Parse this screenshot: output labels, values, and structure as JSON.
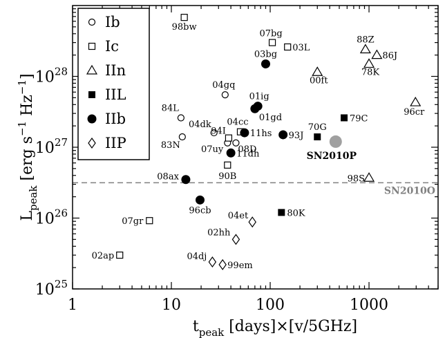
{
  "chart_data": {
    "type": "scatter",
    "title": "",
    "xlabel": {
      "main": "t",
      "sub": "peak",
      "rest": " [days]×[v/5GHz]"
    },
    "ylabel": {
      "main": "L",
      "sub": "peak",
      "rest": " [erg s",
      "exp1": "−1",
      "mid": " Hz",
      "exp2": "−1",
      "close": "]"
    },
    "x_scale": "log",
    "y_scale": "log",
    "xlim": [
      1,
      5000
    ],
    "ylim": [
      1e+25,
      1e+29
    ],
    "grid": false,
    "legend_position": "top-left",
    "x_ticks": [
      {
        "value": 1,
        "label": "1"
      },
      {
        "value": 10,
        "label": "10"
      },
      {
        "value": 100,
        "label": "100"
      },
      {
        "value": 1000,
        "label": "1000"
      }
    ],
    "y_ticks": [
      {
        "value": 1e+25,
        "mant": "10",
        "exp": "25"
      },
      {
        "value": 1e+26,
        "mant": "10",
        "exp": "26"
      },
      {
        "value": 1e+27,
        "mant": "10",
        "exp": "27"
      },
      {
        "value": 1e+28,
        "mant": "10",
        "exp": "28"
      }
    ],
    "legend": [
      {
        "key": "Ib",
        "label": "Ib",
        "marker": "circle-open"
      },
      {
        "key": "Ic",
        "label": "Ic",
        "marker": "square-open"
      },
      {
        "key": "IIn",
        "label": "IIn",
        "marker": "triangle-open"
      },
      {
        "key": "IIL",
        "label": "IIL",
        "marker": "square-filled"
      },
      {
        "key": "IIb",
        "label": "IIb",
        "marker": "circle-filled"
      },
      {
        "key": "IIP",
        "label": "IIP",
        "marker": "diamond-open"
      }
    ],
    "series": [
      {
        "name": "Ib",
        "marker": "circle-open",
        "points": [
          {
            "label": "84L",
            "x": 12.5,
            "y": 2.6e+27
          },
          {
            "label": "83N",
            "x": 12.9,
            "y": 1.4e+27
          },
          {
            "label": "04dk",
            "x": 27,
            "y": 1.6e+27
          },
          {
            "label": "04gq",
            "x": 35,
            "y": 5.5e+27
          },
          {
            "label": "07uy",
            "x": 37,
            "y": 1.15e+27
          },
          {
            "label": "08D",
            "x": 45,
            "y": 1.15e+27
          }
        ]
      },
      {
        "name": "Ic",
        "marker": "square-open",
        "points": [
          {
            "label": "98bw",
            "x": 13.5,
            "y": 6.8e+28
          },
          {
            "label": "07bg",
            "x": 105,
            "y": 3e+28
          },
          {
            "label": "03L",
            "x": 150,
            "y": 2.6e+28
          },
          {
            "label": "94I",
            "x": 38,
            "y": 1.35e+27
          },
          {
            "label": "04cc",
            "x": 50,
            "y": 1.65e+27
          },
          {
            "label": "90B",
            "x": 37,
            "y": 5.6e+26
          },
          {
            "label": "07gr",
            "x": 6,
            "y": 9.2e+25
          },
          {
            "label": "02ap",
            "x": 3,
            "y": 3e+25
          }
        ]
      },
      {
        "name": "IIn",
        "marker": "triangle-open",
        "points": [
          {
            "label": "88Z",
            "x": 920,
            "y": 2.4e+28
          },
          {
            "label": "86J",
            "x": 1200,
            "y": 2e+28
          },
          {
            "label": "78K",
            "x": 1000,
            "y": 1.5e+28
          },
          {
            "label": "00ft",
            "x": 300,
            "y": 1.15e+28
          },
          {
            "label": "96cr",
            "x": 2950,
            "y": 4.3e+27
          },
          {
            "label": "98S",
            "x": 1000,
            "y": 3.7e+26
          }
        ]
      },
      {
        "name": "IIL",
        "marker": "square-filled",
        "points": [
          {
            "label": "79C",
            "x": 560,
            "y": 2.6e+27
          },
          {
            "label": "70G",
            "x": 300,
            "y": 1.4e+27
          },
          {
            "label": "80K",
            "x": 130,
            "y": 1.2e+26
          }
        ]
      },
      {
        "name": "IIb",
        "marker": "circle-filled",
        "points": [
          {
            "label": "03bg",
            "x": 90,
            "y": 1.5e+28
          },
          {
            "label": "01ig",
            "x": 75,
            "y": 3.8e+27
          },
          {
            "label": "01gd",
            "x": 70,
            "y": 3.5e+27
          },
          {
            "label": "11hs",
            "x": 55,
            "y": 1.6e+27
          },
          {
            "label": "93J",
            "x": 135,
            "y": 1.5e+27
          },
          {
            "label": "11dh",
            "x": 40,
            "y": 8.3e+26
          },
          {
            "label": "08ax",
            "x": 14,
            "y": 3.5e+26
          },
          {
            "label": "96cb",
            "x": 19.5,
            "y": 1.8e+26
          }
        ]
      },
      {
        "name": "IIP",
        "marker": "diamond-open",
        "points": [
          {
            "label": "04et",
            "x": 66,
            "y": 8.8e+25
          },
          {
            "label": "02hh",
            "x": 45,
            "y": 5e+25
          },
          {
            "label": "04dj",
            "x": 26,
            "y": 2.4e+25
          },
          {
            "label": "99em",
            "x": 33,
            "y": 2.2e+25
          }
        ]
      }
    ],
    "highlight": {
      "label": "SN2010P",
      "x": 460,
      "y": 1.2e+27,
      "color": "#a0a0a0"
    },
    "reference_line": {
      "label": "SN2010O",
      "y": 3.15e+26,
      "color": "#808080"
    }
  }
}
